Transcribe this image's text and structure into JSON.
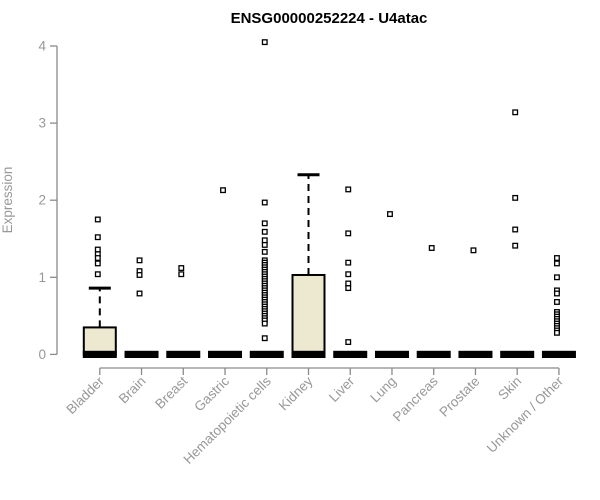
{
  "chart_data": {
    "type": "boxplot",
    "title": "ENSG00000252224 - U4atac",
    "ylabel": "Expression",
    "xlabel": "",
    "ylim": [
      0,
      4
    ],
    "yticks": [
      0,
      1,
      2,
      3,
      4
    ],
    "grid": false,
    "legend": null,
    "categories": [
      "Bladder",
      "Brain",
      "Breast",
      "Gastric",
      "Hematopoietic cells",
      "Kidney",
      "Liver",
      "Lung",
      "Pancreas",
      "Prostate",
      "Skin",
      "Unknown / Other"
    ],
    "boxes": [
      {
        "category": "Bladder",
        "q1": 0,
        "median": 0,
        "q3": 0.35,
        "whisker_low": 0,
        "whisker_high": 0.86,
        "outliers": [
          1.75,
          1.52,
          1.36,
          1.3,
          1.25,
          1.18,
          1.04
        ]
      },
      {
        "category": "Brain",
        "q1": 0,
        "median": 0,
        "q3": 0,
        "whisker_low": 0,
        "whisker_high": 0,
        "outliers": [
          1.22,
          1.08,
          1.03,
          0.79
        ]
      },
      {
        "category": "Breast",
        "q1": 0,
        "median": 0,
        "q3": 0,
        "whisker_low": 0,
        "whisker_high": 0,
        "outliers": [
          1.12,
          1.04
        ]
      },
      {
        "category": "Gastric",
        "q1": 0,
        "median": 0,
        "q3": 0,
        "whisker_low": 0,
        "whisker_high": 0,
        "outliers": [
          2.13
        ]
      },
      {
        "category": "Hematopoietic cells",
        "q1": 0,
        "median": 0,
        "q3": 0,
        "whisker_low": 0,
        "whisker_high": 0,
        "outliers": [
          4.05,
          1.97,
          1.7,
          1.59,
          1.48,
          1.42,
          1.33,
          1.22,
          1.19,
          1.16,
          1.13,
          1.1,
          1.07,
          1.04,
          1.01,
          0.98,
          0.95,
          0.92,
          0.89,
          0.86,
          0.83,
          0.8,
          0.77,
          0.74,
          0.71,
          0.68,
          0.65,
          0.62,
          0.59,
          0.56,
          0.53,
          0.5,
          0.47,
          0.44,
          0.4,
          0.21
        ]
      },
      {
        "category": "Kidney",
        "q1": 0,
        "median": 0,
        "q3": 1.03,
        "whisker_low": 0,
        "whisker_high": 2.33,
        "outliers": []
      },
      {
        "category": "Liver",
        "q1": 0,
        "median": 0,
        "q3": 0,
        "whisker_low": 0,
        "whisker_high": 0,
        "outliers": [
          2.14,
          1.57,
          1.19,
          1.04,
          0.92,
          0.86,
          0.16
        ]
      },
      {
        "category": "Lung",
        "q1": 0,
        "median": 0,
        "q3": 0,
        "whisker_low": 0,
        "whisker_high": 0,
        "outliers": [
          1.82
        ]
      },
      {
        "category": "Pancreas",
        "q1": 0,
        "median": 0,
        "q3": 0,
        "whisker_low": 0,
        "whisker_high": 0,
        "outliers": [
          1.38
        ]
      },
      {
        "category": "Prostate",
        "q1": 0,
        "median": 0,
        "q3": 0,
        "whisker_low": 0,
        "whisker_high": 0,
        "outliers": [
          1.35
        ]
      },
      {
        "category": "Skin",
        "q1": 0,
        "median": 0,
        "q3": 0,
        "whisker_low": 0,
        "whisker_high": 0,
        "outliers": [
          3.14,
          2.03,
          1.62,
          1.41
        ]
      },
      {
        "category": "Unknown / Other",
        "q1": 0,
        "median": 0,
        "q3": 0,
        "whisker_low": 0,
        "whisker_high": 0,
        "outliers": [
          1.25,
          1.18,
          1.0,
          0.83,
          0.79,
          0.68,
          0.55,
          0.52,
          0.49,
          0.46,
          0.43,
          0.4,
          0.37,
          0.34,
          0.31,
          0.28
        ]
      }
    ],
    "colors": {
      "background": "#ffffff",
      "title": "#000000",
      "axis_line": "#8a8a8a",
      "axis_text": "#989898",
      "box_fill": "#ede8d0",
      "box_border": "#000000",
      "median_bar": "#000000",
      "whisker": "#000000",
      "outlier_fill": "#ffffff",
      "outlier_stroke": "#000000"
    }
  }
}
